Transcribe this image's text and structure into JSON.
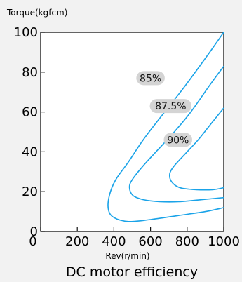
{
  "chart_data": {
    "type": "line",
    "title": "DC motor efficiency",
    "xlabel": "Rev(r/min)",
    "ylabel": "Torque(kgfcm)",
    "xlim": [
      0,
      1000
    ],
    "ylim": [
      0,
      100
    ],
    "xticks": [
      "0",
      "200",
      "400",
      "600",
      "800",
      "1000"
    ],
    "yticks": [
      "0",
      "20",
      "40",
      "60",
      "80",
      "100"
    ],
    "grid": false,
    "line_color": "#1aa3e8",
    "series": [
      {
        "label": "85%",
        "label_pos": {
          "x": 600,
          "y": 77
        },
        "points": [
          [
            1000,
            100
          ],
          [
            900,
            87
          ],
          [
            780,
            72
          ],
          [
            660,
            58
          ],
          [
            560,
            46
          ],
          [
            480,
            35
          ],
          [
            410,
            26
          ],
          [
            375,
            18
          ],
          [
            370,
            11
          ],
          [
            400,
            7
          ],
          [
            480,
            5
          ],
          [
            600,
            6
          ],
          [
            750,
            8
          ],
          [
            900,
            10
          ],
          [
            1000,
            12
          ]
        ]
      },
      {
        "label": "87.5%",
        "label_pos": {
          "x": 710,
          "y": 63
        },
        "points": [
          [
            1000,
            83
          ],
          [
            920,
            73
          ],
          [
            820,
            60
          ],
          [
            730,
            50
          ],
          [
            640,
            41
          ],
          [
            560,
            33
          ],
          [
            500,
            26
          ],
          [
            485,
            22
          ],
          [
            505,
            18
          ],
          [
            560,
            16
          ],
          [
            650,
            15
          ],
          [
            760,
            15
          ],
          [
            880,
            16
          ],
          [
            1000,
            17
          ]
        ]
      },
      {
        "label": "90%",
        "label_pos": {
          "x": 750,
          "y": 46
        },
        "points": [
          [
            1000,
            62
          ],
          [
            930,
            54
          ],
          [
            860,
            46
          ],
          [
            790,
            39
          ],
          [
            730,
            33
          ],
          [
            705,
            29
          ],
          [
            715,
            25
          ],
          [
            760,
            22
          ],
          [
            850,
            21
          ],
          [
            940,
            21
          ],
          [
            1000,
            22
          ]
        ]
      }
    ]
  }
}
